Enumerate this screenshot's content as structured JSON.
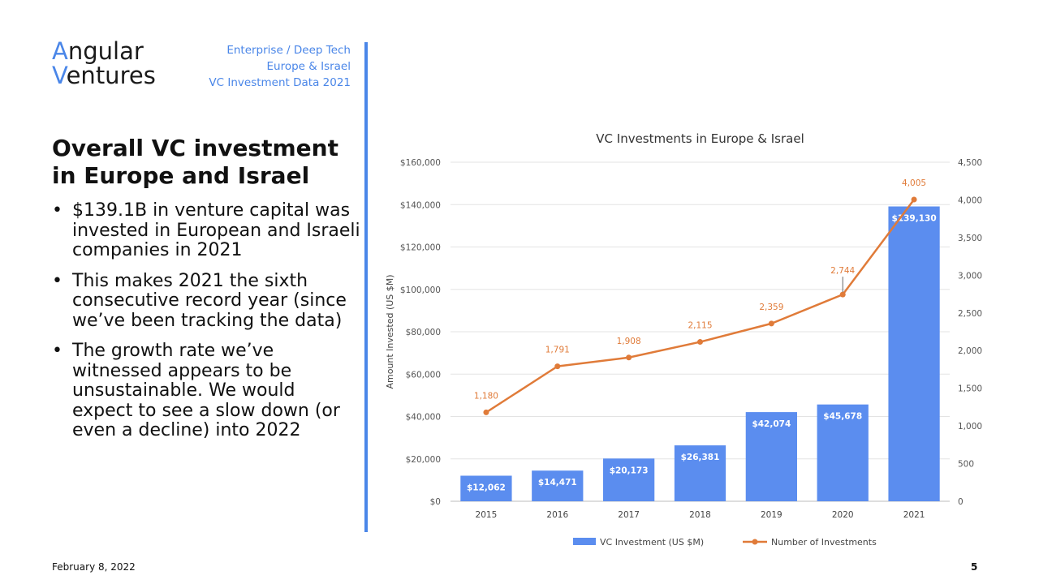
{
  "logo": {
    "line1_accent": "A",
    "line1_rest": "ngular",
    "line2_accent": "V",
    "line2_rest": "entures"
  },
  "tags": [
    "Enterprise / Deep Tech",
    "Europe & Israel",
    "VC Investment Data 2021"
  ],
  "title": "Overall VC investment in Europe and Israel",
  "bullets": [
    "$139.1B in venture capital was invested in European and Israeli companies in 2021",
    "This makes 2021 the sixth consecutive record year (since we’ve been tracking the data)",
    "The growth rate we’ve witnessed appears to be unsustainable. We would expect to see a slow down (or even a decline) into 2022"
  ],
  "footer": {
    "date": "February 8, 2022",
    "page": "5"
  },
  "colors": {
    "accent": "#4a86e8",
    "bar": "#5b8def",
    "line": "#e07b39",
    "text": "#111111"
  },
  "chart_data": {
    "type": "bar",
    "title": "VC Investments in Europe & Israel",
    "categories": [
      "2015",
      "2016",
      "2017",
      "2018",
      "2019",
      "2020",
      "2021"
    ],
    "ylabel": "Amount Invested (US $M)",
    "ylim": [
      0,
      160000
    ],
    "y_ticks": [
      "$0",
      "$20,000",
      "$40,000",
      "$60,000",
      "$80,000",
      "$100,000",
      "$120,000",
      "$140,000",
      "$160,000"
    ],
    "y2lim": [
      0,
      4500
    ],
    "y2_ticks": [
      "0",
      "500",
      "1,000",
      "1,500",
      "2,000",
      "2,500",
      "3,000",
      "3,500",
      "4,000",
      "4,500"
    ],
    "series": [
      {
        "name": "VC Investment (US $M)",
        "type": "bar",
        "axis": "left",
        "values": [
          12062,
          14471,
          20173,
          26381,
          42074,
          45678,
          139130
        ],
        "labels": [
          "$12,062",
          "$14,471",
          "$20,173",
          "$26,381",
          "$42,074",
          "$45,678",
          "$139,130"
        ]
      },
      {
        "name": "Number of Investments",
        "type": "line",
        "axis": "right",
        "values": [
          1180,
          1791,
          1908,
          2115,
          2359,
          2744,
          4005
        ],
        "labels": [
          "1,180",
          "1,791",
          "1,908",
          "2,115",
          "2,359",
          "2,744",
          "4,005"
        ]
      }
    ],
    "grid": true,
    "legend": "bottom"
  }
}
